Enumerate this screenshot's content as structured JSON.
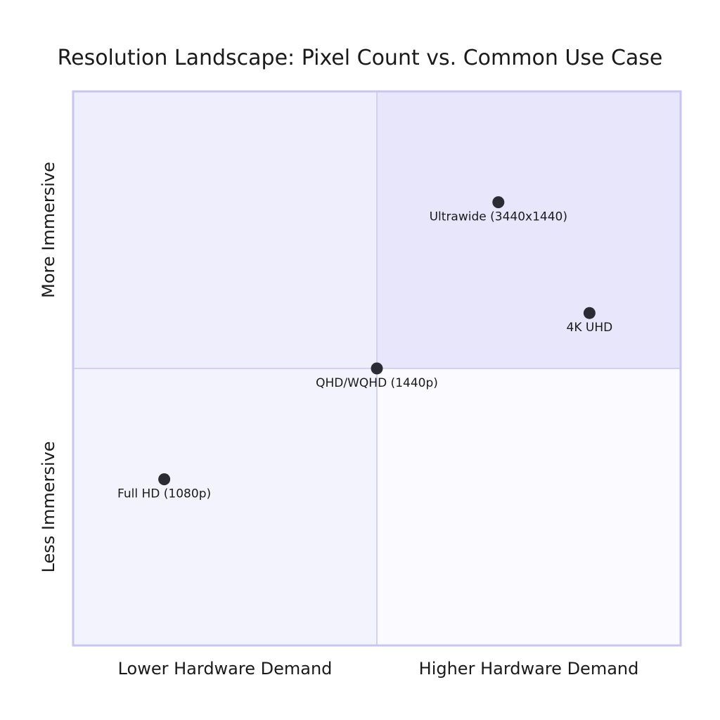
{
  "chart_data": {
    "type": "quadrant",
    "title": "Resolution Landscape: Pixel Count vs. Common Use Case",
    "x_axis": {
      "low": "Lower Hardware Demand",
      "high": "Higher Hardware Demand"
    },
    "y_axis": {
      "low": "Less Immersive",
      "high": "More Immersive"
    },
    "xlim": [
      0,
      1
    ],
    "ylim": [
      0,
      1
    ],
    "quadrant_colors": {
      "top_right": "#e8e6fb",
      "top_left": "#efeefc",
      "bottom_left": "#f3f3fd",
      "bottom_right": "#fafaff"
    },
    "border_color": "#c8c6f0",
    "point_color": "#2b2b33",
    "points": [
      {
        "label": "Ultrawide (3440x1440)",
        "x": 0.7,
        "y": 0.8
      },
      {
        "label": "4K UHD",
        "x": 0.85,
        "y": 0.6
      },
      {
        "label": "QHD/WQHD (1440p)",
        "x": 0.5,
        "y": 0.5
      },
      {
        "label": "Full HD (1080p)",
        "x": 0.15,
        "y": 0.3
      }
    ]
  }
}
